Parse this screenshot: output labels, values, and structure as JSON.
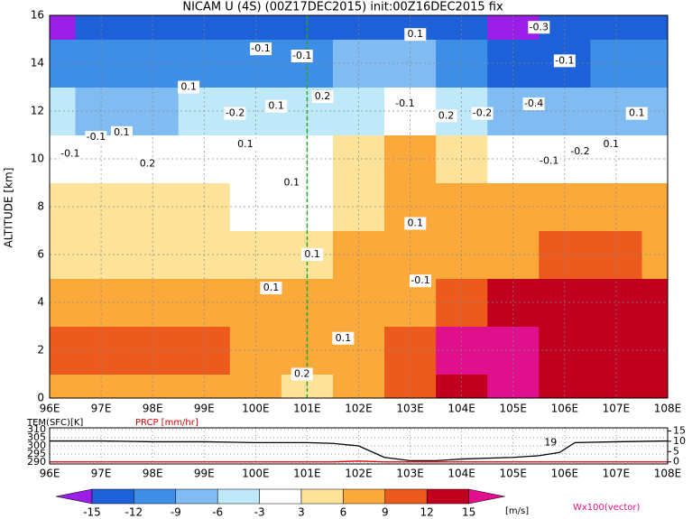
{
  "chart_data": [
    {
      "type": "filled_contour",
      "title": "NICAM U (4S) (00Z17DEC2015) init:00Z16DEC2015 fix",
      "ylabel": "ALTITUDE [km]",
      "xlim": [
        96,
        108
      ],
      "ylim": [
        0,
        16
      ],
      "xticks": [
        {
          "value": 96,
          "label": "96E"
        },
        {
          "value": 97,
          "label": "97E"
        },
        {
          "value": 98,
          "label": "98E"
        },
        {
          "value": 99,
          "label": "99E"
        },
        {
          "value": 100,
          "label": "100E"
        },
        {
          "value": 101,
          "label": "101E"
        },
        {
          "value": 102,
          "label": "102E"
        },
        {
          "value": 103,
          "label": "103E"
        },
        {
          "value": 104,
          "label": "104E"
        },
        {
          "value": 105,
          "label": "105E"
        },
        {
          "value": 106,
          "label": "106E"
        },
        {
          "value": 107,
          "label": "107E"
        },
        {
          "value": 108,
          "label": "108E"
        }
      ],
      "yticks": [
        0,
        2,
        4,
        6,
        8,
        10,
        12,
        14,
        16
      ],
      "grid": true,
      "x": [
        96,
        97,
        98,
        99,
        100,
        101,
        102,
        103,
        104,
        105,
        106,
        107,
        108
      ],
      "z": [
        0,
        2,
        4,
        6,
        8,
        10,
        12,
        14,
        16
      ],
      "values": [
        [
          6,
          7,
          8,
          7,
          6,
          5,
          6,
          10,
          13,
          16,
          13,
          12,
          12
        ],
        [
          9,
          10,
          10,
          9,
          8,
          6,
          7,
          9,
          15,
          16,
          12,
          12,
          13
        ],
        [
          8,
          8,
          7,
          7,
          7,
          6,
          6,
          7,
          9,
          12,
          12,
          13,
          13
        ],
        [
          4,
          5,
          5,
          5,
          5,
          4,
          6,
          8,
          7,
          8,
          9,
          9,
          8
        ],
        [
          3,
          4,
          4,
          3,
          2,
          1,
          5,
          8,
          6,
          6,
          6,
          7,
          6
        ],
        [
          -3,
          -2,
          -2,
          -1,
          0,
          1,
          4,
          6,
          3,
          1,
          0,
          0,
          0
        ],
        [
          -6,
          -7,
          -7,
          -6,
          -6,
          -5,
          -4,
          -3,
          -6,
          -9,
          -8,
          -8,
          -7
        ],
        [
          -12,
          -12,
          -11,
          -10,
          -10,
          -10,
          -9,
          -9,
          -12,
          -13,
          -13,
          -12,
          -12
        ],
        [
          -16,
          -15,
          -15,
          -14,
          -14,
          -13,
          -13,
          -14,
          -15,
          -16,
          -15,
          -15,
          -15
        ]
      ],
      "levels": [
        -15,
        -12,
        -9,
        -6,
        -3,
        3,
        6,
        9,
        12,
        15
      ],
      "colors": [
        "#9a1ee6",
        "#1e60d8",
        "#3e8ee8",
        "#80bcf2",
        "#bfe8f8",
        "#ffffff",
        "#fde29a",
        "#fba93a",
        "#ec5a1e",
        "#c0001e",
        "#e0108c"
      ],
      "colorbar_unit": "[m/s]",
      "vector_label": "Wx100(vector)",
      "annotations": [
        {
          "text": "-0.1",
          "x": 96.4,
          "z": 10.2
        },
        {
          "text": "-0.1",
          "x": 96.9,
          "z": 10.9
        },
        {
          "text": "0.1",
          "x": 97.4,
          "z": 11.1
        },
        {
          "text": "0.2",
          "x": 97.9,
          "z": 9.8
        },
        {
          "text": "0.1",
          "x": 98.7,
          "z": 13
        },
        {
          "text": "-0.1",
          "x": 100.1,
          "z": 14.6
        },
        {
          "text": "-0.2",
          "x": 99.6,
          "z": 11.9
        },
        {
          "text": "0.1",
          "x": 100.4,
          "z": 12.2
        },
        {
          "text": "0.1",
          "x": 99.8,
          "z": 10.6
        },
        {
          "text": "-0.1",
          "x": 100.9,
          "z": 14.3
        },
        {
          "text": "0.2",
          "x": 101.3,
          "z": 12.6
        },
        {
          "text": "0.1",
          "x": 100.7,
          "z": 9
        },
        {
          "text": "0.1",
          "x": 101.1,
          "z": 6
        },
        {
          "text": "0.1",
          "x": 100.3,
          "z": 4.6
        },
        {
          "text": "-0.1",
          "x": 102.9,
          "z": 12.3
        },
        {
          "text": "0.2",
          "x": 103.7,
          "z": 11.8
        },
        {
          "text": "-0.2",
          "x": 104.4,
          "z": 11.9
        },
        {
          "text": "0.1",
          "x": 103.1,
          "z": 7.3
        },
        {
          "text": "-0.1",
          "x": 103.2,
          "z": 4.9
        },
        {
          "text": "-0.3",
          "x": 105.5,
          "z": 15.5
        },
        {
          "text": "-0.1",
          "x": 106,
          "z": 14.1
        },
        {
          "text": "-0.4",
          "x": 105.4,
          "z": 12.3
        },
        {
          "text": "0.1",
          "x": 106.9,
          "z": 10.6
        },
        {
          "text": "0.1",
          "x": 107.4,
          "z": 11.9
        },
        {
          "text": "-0.1",
          "x": 105.7,
          "z": 9.9
        },
        {
          "text": "-0.2",
          "x": 106.3,
          "z": 10.3
        },
        {
          "text": "0.1",
          "x": 103.1,
          "z": 15.2
        },
        {
          "text": "0.1",
          "x": 101.7,
          "z": 2.5
        },
        {
          "text": "0.2",
          "x": 100.9,
          "z": 1
        }
      ]
    },
    {
      "type": "line",
      "ylabel": "TEM(SFC)[K]",
      "y2label": "PRCP [mm/hr]",
      "xlim": [
        96,
        108
      ],
      "ylim": [
        289,
        311
      ],
      "y2lim": [
        -1,
        16.5
      ],
      "xticks": [
        {
          "value": 96,
          "label": "96E"
        },
        {
          "value": 97,
          "label": "97E"
        },
        {
          "value": 98,
          "label": "98E"
        },
        {
          "value": 99,
          "label": "99E"
        },
        {
          "value": 100,
          "label": "100E"
        },
        {
          "value": 101,
          "label": "101E"
        },
        {
          "value": 102,
          "label": "102E"
        },
        {
          "value": 103,
          "label": "103E"
        },
        {
          "value": 104,
          "label": "104E"
        },
        {
          "value": 105,
          "label": "105E"
        },
        {
          "value": 106,
          "label": "106E"
        },
        {
          "value": 107,
          "label": "107E"
        },
        {
          "value": 108,
          "label": "108E"
        }
      ],
      "yticks": [
        290,
        295,
        300,
        305,
        310
      ],
      "y2ticks": [
        0,
        5,
        10,
        15
      ],
      "series": [
        {
          "name": "TEM(SFC)[K]",
          "color": "#000000",
          "x": [
            96,
            97,
            98,
            99,
            100,
            101,
            101.5,
            102,
            102.5,
            103,
            103.5,
            104,
            104.5,
            105,
            105.5,
            105.9,
            106.2,
            107,
            108
          ],
          "values": [
            303,
            303,
            302.5,
            302.5,
            302,
            302,
            301.5,
            300,
            293,
            291,
            291,
            292,
            292.5,
            293,
            294,
            296,
            302,
            302.5,
            303
          ]
        },
        {
          "name": "PRCP [mm/hr]",
          "color": "#e00000",
          "axis": "y2",
          "x": [
            96,
            100,
            101.5,
            102,
            102.5,
            103,
            108
          ],
          "values": [
            0,
            0,
            0,
            0.4,
            0,
            0,
            0
          ]
        }
      ],
      "annotations": [
        {
          "text": "19",
          "x": 105.85,
          "z": 302
        }
      ]
    }
  ]
}
